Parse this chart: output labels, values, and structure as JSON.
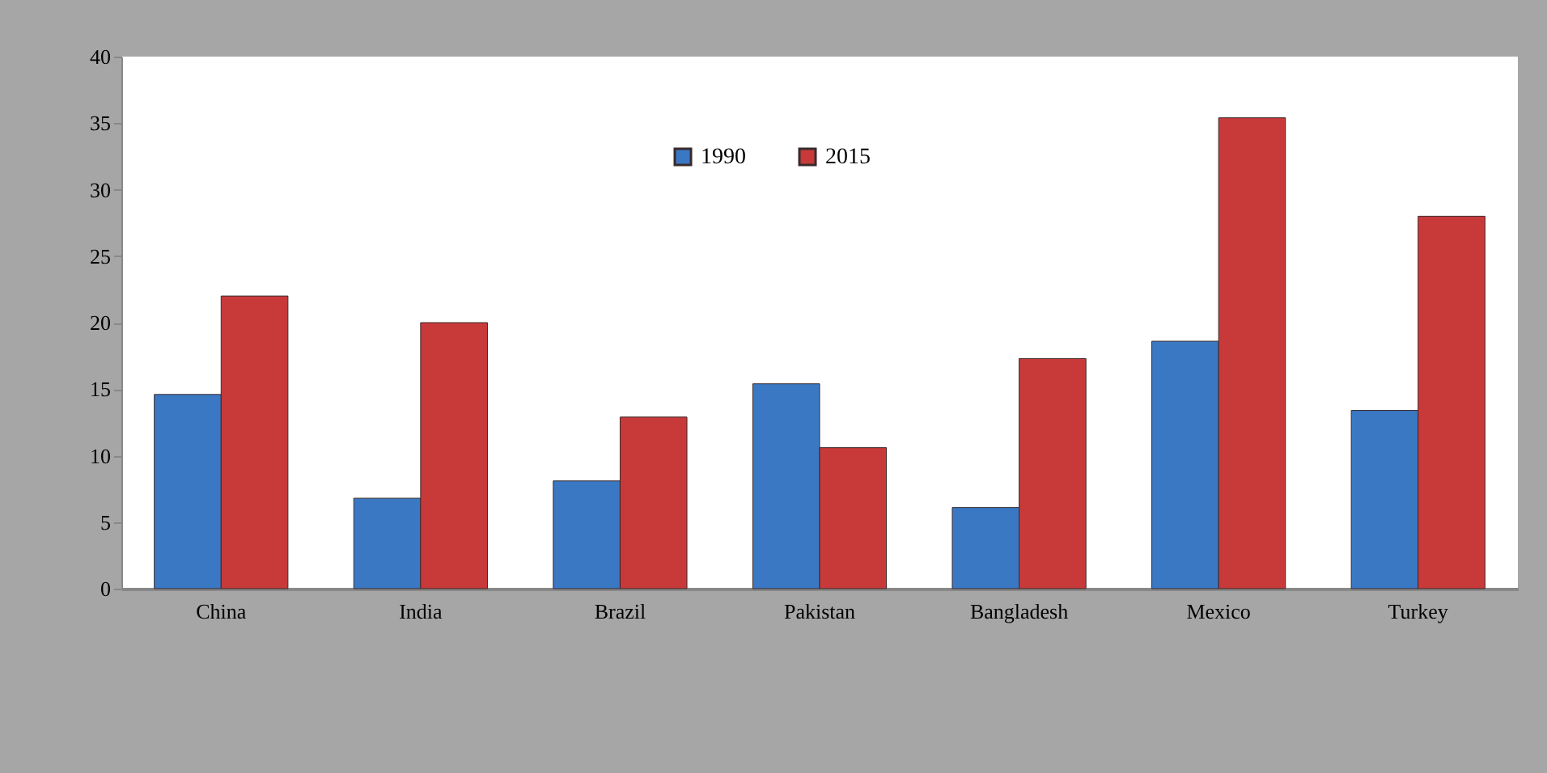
{
  "chart_data": {
    "type": "bar",
    "categories": [
      "China",
      "India",
      "Brazil",
      "Pakistan",
      "Bangladesh",
      "Mexico",
      "Turkey"
    ],
    "series": [
      {
        "name": "1990",
        "color": "#3a78c4",
        "values": [
          14.6,
          6.8,
          8.1,
          15.4,
          6.1,
          18.6,
          13.4
        ]
      },
      {
        "name": "2015",
        "color": "#c83a3a",
        "values": [
          22.0,
          20.0,
          12.9,
          10.6,
          17.3,
          35.4,
          28.0
        ]
      }
    ],
    "ylim": [
      0,
      40
    ],
    "yticks": [
      0,
      5,
      10,
      15,
      20,
      25,
      30,
      35,
      40
    ],
    "grid": false,
    "legend": "top"
  }
}
